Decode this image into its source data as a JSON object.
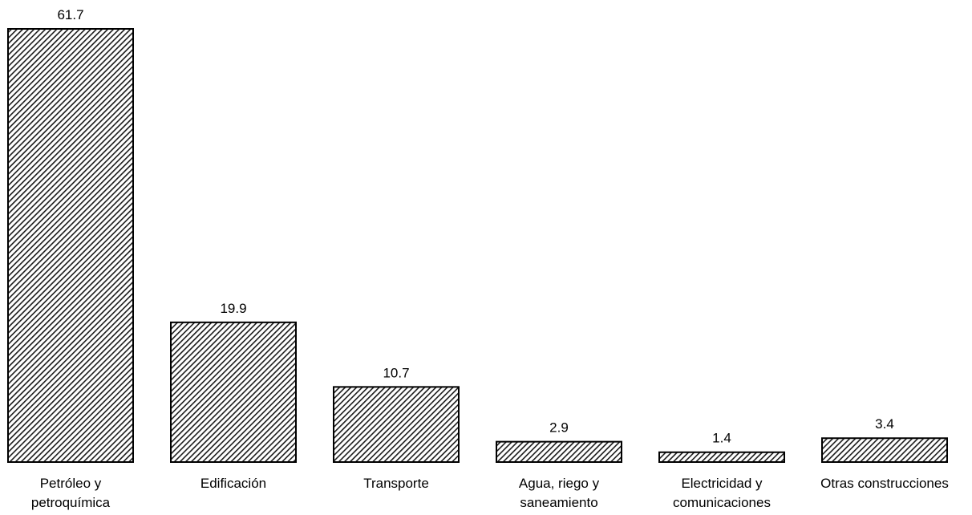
{
  "chart_data": {
    "type": "bar",
    "categories": [
      [
        "Petróleo y",
        "petroquímica"
      ],
      [
        "Edificación"
      ],
      [
        "Transporte"
      ],
      [
        "Agua, riego y",
        "saneamiento"
      ],
      [
        "Electricidad y",
        "comunicaciones"
      ],
      [
        "Otras construcciones"
      ]
    ],
    "values": [
      61.7,
      19.9,
      10.7,
      2.9,
      1.4,
      3.4
    ],
    "value_labels": [
      "61.7",
      "19.9",
      "10.7",
      "2.9",
      "1.4",
      "3.4"
    ],
    "ylim": [
      0,
      61.7
    ],
    "grid": false,
    "bar_fill": "diagonal hatch",
    "bar_color": "#000000",
    "background": "#ffffff"
  }
}
